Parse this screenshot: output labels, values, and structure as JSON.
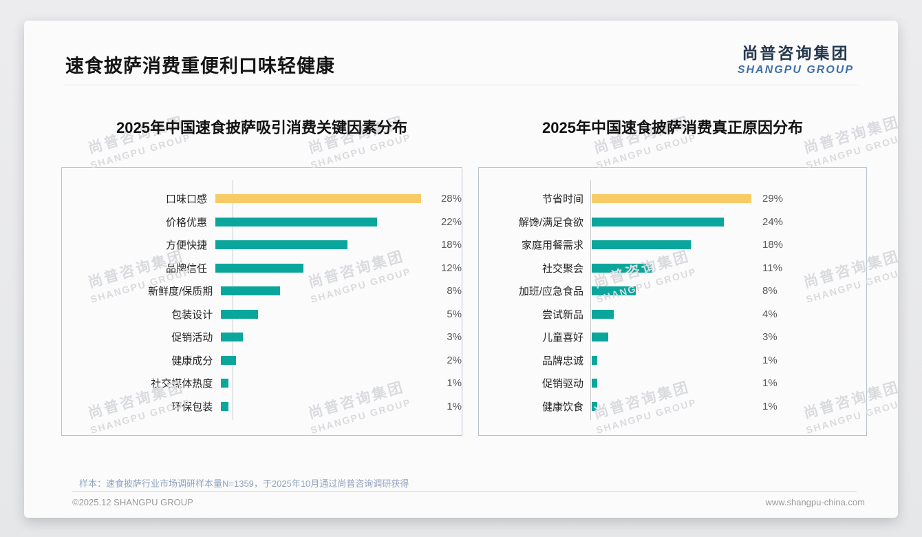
{
  "page": {
    "title": "速食披萨消费重便利口味轻健康",
    "logo": {
      "cn": "尚普咨询集团",
      "en": "SHANGPU GROUP"
    },
    "watermark": {
      "cn": "尚普咨询集团",
      "en": "SHANGPU GROUP"
    },
    "sample_note": "样本：速食披萨行业市场调研样本量N=1359，于2025年10月通过尚普咨询调研获得",
    "footer_left": "©2025.12 SHANGPU GROUP",
    "footer_right": "www.shangpu-china.com"
  },
  "colors": {
    "highlight_bar": "#F9CB67",
    "bar": "#0BA69B",
    "logo_navy": "#24384D",
    "logo_blue": "#3F6FA8",
    "panel_border": "#B7C2CE",
    "value_text": "#595959",
    "note_text": "#92A3BC"
  },
  "chart_data": [
    {
      "type": "bar",
      "orientation": "horizontal",
      "title": "2025年中国速食披萨吸引消费关键因素分布",
      "categories": [
        "口味口感",
        "价格优惠",
        "方便快捷",
        "品牌信任",
        "新鲜度/保质期",
        "包装设计",
        "促销活动",
        "健康成分",
        "社交媒体热度",
        "环保包装"
      ],
      "values": [
        28,
        22,
        18,
        12,
        8,
        5,
        3,
        2,
        1,
        1
      ],
      "unit": "%",
      "xlim": [
        0,
        30
      ],
      "highlight_first_bar": true,
      "grid": false,
      "legend": false,
      "value_labels": "right of bar"
    },
    {
      "type": "bar",
      "orientation": "horizontal",
      "title": "2025年中国速食披萨消费真正原因分布",
      "categories": [
        "节省时间",
        "解馋/满足食欲",
        "家庭用餐需求",
        "社交聚会",
        "加班/应急食品",
        "尝试新品",
        "儿童喜好",
        "品牌忠诚",
        "促销驱动",
        "健康饮食"
      ],
      "values": [
        29,
        24,
        18,
        11,
        8,
        4,
        3,
        1,
        1,
        1
      ],
      "unit": "%",
      "xlim": [
        0,
        30
      ],
      "highlight_first_bar": true,
      "grid": false,
      "legend": false,
      "value_labels": "right of bar"
    }
  ]
}
